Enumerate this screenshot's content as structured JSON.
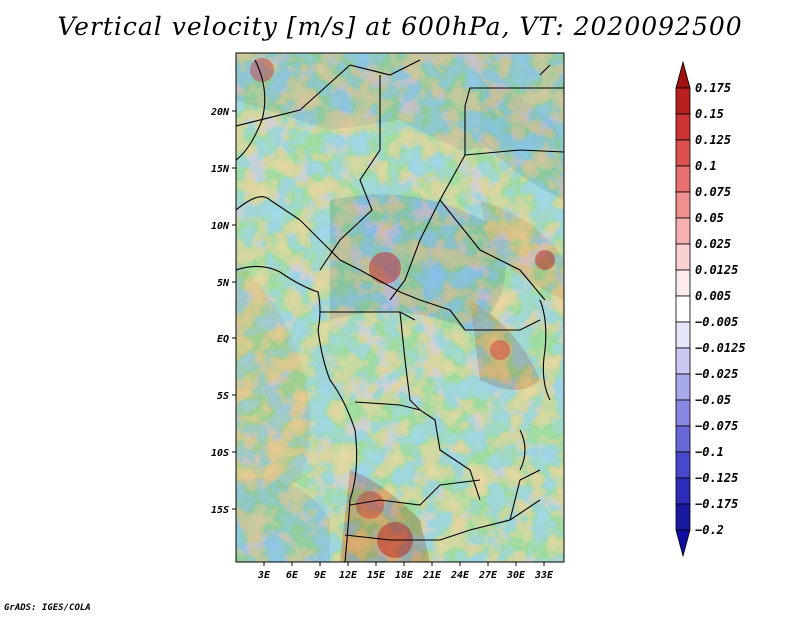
{
  "title": "Vertical velocity [m/s] at 600hPa, VT: 2020092500",
  "credit": "GrADS: IGES/COLA",
  "map": {
    "lat_labels": [
      "20N",
      "15N",
      "10N",
      "5N",
      "EQ",
      "5S",
      "10S",
      "15S"
    ],
    "lon_labels": [
      "3E",
      "6E",
      "9E",
      "12E",
      "15E",
      "18E",
      "21E",
      "24E",
      "27E",
      "30E",
      "33E"
    ]
  },
  "colorbar": {
    "levels": [
      "0.175",
      "0.15",
      "0.125",
      "0.1",
      "0.075",
      "0.05",
      "0.025",
      "0.0125",
      "0.005",
      "−0.005",
      "−0.0125",
      "−0.025",
      "−0.05",
      "−0.075",
      "−0.1",
      "−0.125",
      "−0.175",
      "−0.2"
    ],
    "colors": [
      "#a01010",
      "#b82020",
      "#cc3333",
      "#dd5050",
      "#e87070",
      "#f09090",
      "#f6b0b0",
      "#fad0d0",
      "#fdeaea",
      "#ffffff",
      "#e6e6fa",
      "#c8c8f2",
      "#a8a8ec",
      "#8888e2",
      "#6868d8",
      "#4848cc",
      "#2c2cb8",
      "#1a1aa0",
      "#1010a0"
    ]
  }
}
